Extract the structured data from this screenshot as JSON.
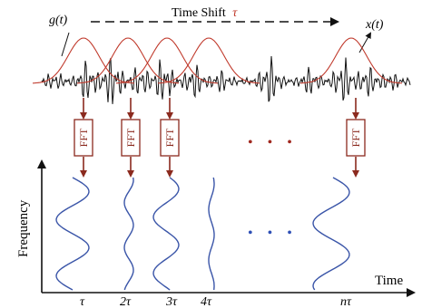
{
  "labels": {
    "time_shift_text": "Time Shift",
    "time_shift_symbol": "τ",
    "g_label": "g(t)",
    "x_label": "x(t)",
    "fft": "FFT",
    "frequency_axis": "Frequency",
    "time_axis": "Time",
    "dots_top": "• • •",
    "dots_bottom": "• • •"
  },
  "ticks": [
    "τ",
    "2τ",
    "3τ",
    "4τ",
    "nτ"
  ],
  "colors": {
    "signal": "#111111",
    "window": "#c0392b",
    "fft_box": "#8b2a1e",
    "spectrum": "#3a55a8",
    "dots_top": "#a0281f",
    "dots_bottom": "#2e4fb5",
    "axis": "#111111"
  }
}
